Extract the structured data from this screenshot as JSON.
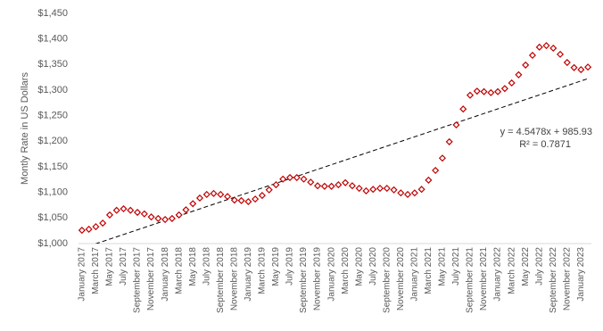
{
  "chart_data": {
    "type": "scatter",
    "y_axis_label": "Montly Rate in US Dollars",
    "categories": [
      "January 2017",
      null,
      "March 2017",
      null,
      "May 2017",
      null,
      "July 2017",
      null,
      "September 2017",
      null,
      "November 2017",
      null,
      "January 2018",
      null,
      "March 2018",
      null,
      "May 2018",
      null,
      "July 2018",
      null,
      "September 2018",
      null,
      "November 2018",
      null,
      "January 2019",
      null,
      "March 2019",
      null,
      "May 2019",
      null,
      "July 2019",
      null,
      "September 2019",
      null,
      "November 2019",
      null,
      "January 2020",
      null,
      "March 2020",
      null,
      "May 2020",
      null,
      "July 2020",
      null,
      "September 2020",
      null,
      "November 2020",
      null,
      "January 2021",
      null,
      "March 2021",
      null,
      "May 2021",
      null,
      "July 2021",
      null,
      "September 2021",
      null,
      "November 2021",
      null,
      "January 2022",
      null,
      "March 2022",
      null,
      "May 2022",
      null,
      "July 2022",
      null,
      "September 2022",
      null,
      "November 2022",
      null,
      "January 2023",
      null
    ],
    "values": [
      1026,
      1028,
      1033,
      1040,
      1056,
      1065,
      1068,
      1065,
      1061,
      1058,
      1052,
      1049,
      1047,
      1049,
      1056,
      1066,
      1078,
      1089,
      1096,
      1098,
      1096,
      1092,
      1085,
      1084,
      1082,
      1087,
      1094,
      1105,
      1115,
      1126,
      1129,
      1129,
      1126,
      1120,
      1113,
      1112,
      1112,
      1115,
      1119,
      1113,
      1108,
      1103,
      1106,
      1108,
      1108,
      1105,
      1099,
      1096,
      1099,
      1106,
      1124,
      1143,
      1167,
      1199,
      1232,
      1263,
      1290,
      1298,
      1297,
      1295,
      1297,
      1303,
      1314,
      1330,
      1349,
      1368,
      1384,
      1387,
      1382,
      1370,
      1354,
      1344,
      1340,
      1345
    ],
    "color": "#c00000",
    "marker": "diamond",
    "ylim": [
      1000,
      1450
    ],
    "yticks": [
      {
        "value": 1000,
        "label": "$1,000"
      },
      {
        "value": 1050,
        "label": "$1,050"
      },
      {
        "value": 1100,
        "label": "$1,100"
      },
      {
        "value": 1150,
        "label": "$1,150"
      },
      {
        "value": 1200,
        "label": "$1,200"
      },
      {
        "value": 1250,
        "label": "$1,250"
      },
      {
        "value": 1300,
        "label": "$1,300"
      },
      {
        "value": 1350,
        "label": "$1,350"
      },
      {
        "value": 1400,
        "label": "$1,400"
      },
      {
        "value": 1450,
        "label": "$1,450"
      }
    ],
    "grid": false,
    "trendline": {
      "slope": 4.5478,
      "intercept": 985.93,
      "label": "y = 4.5478x + 985.93",
      "r2_label": "R² = 0.7871",
      "color": "#000000"
    }
  }
}
